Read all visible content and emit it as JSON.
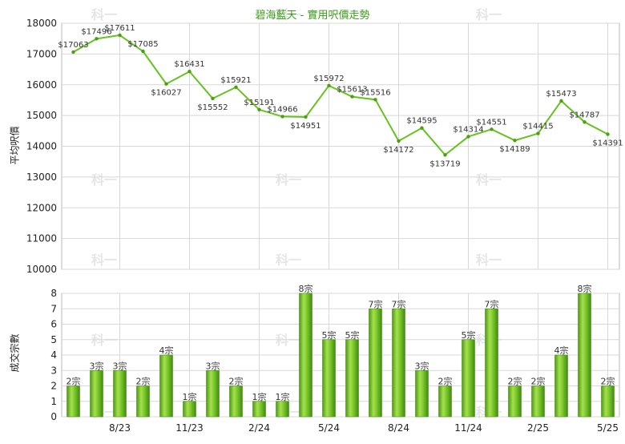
{
  "chart_data": [
    {
      "type": "line",
      "title": "碧海藍天 - 實用呎價走勢",
      "ylabel": "平均呎價",
      "ylim": [
        10000,
        18000
      ],
      "yticks": [
        10000,
        11000,
        12000,
        13000,
        14000,
        15000,
        16000,
        17000,
        18000
      ],
      "values": [
        17063,
        17496,
        17611,
        17085,
        16027,
        16431,
        15552,
        15921,
        15191,
        14966,
        14951,
        15972,
        15613,
        15516,
        14172,
        14595,
        13719,
        14314,
        14551,
        14189,
        14415,
        15473,
        14787,
        14391
      ],
      "data_labels": [
        "$17063",
        "$17496",
        "$17611",
        "$17085",
        "$16027",
        "$16431",
        "$15552",
        "$15921",
        "$15191",
        "$14966",
        "$14951",
        "$15972",
        "$15613",
        "$15516",
        "$14172",
        "$14595",
        "$13719",
        "$14314",
        "$14551",
        "$14189",
        "$14415",
        "$15473",
        "$14787",
        "$14391"
      ],
      "line_color": "#66c21e"
    },
    {
      "type": "bar",
      "ylabel": "成交宗數",
      "ylim": [
        0,
        8
      ],
      "yticks": [
        0,
        1,
        2,
        3,
        4,
        5,
        6,
        7,
        8
      ],
      "values": [
        2,
        3,
        3,
        2,
        4,
        1,
        3,
        2,
        1,
        1,
        8,
        5,
        5,
        7,
        7,
        3,
        2,
        5,
        7,
        2,
        2,
        4,
        8,
        2
      ],
      "data_labels": [
        "2宗",
        "3宗",
        "3宗",
        "2宗",
        "4宗",
        "1宗",
        "3宗",
        "2宗",
        "1宗",
        "1宗",
        "8宗",
        "5宗",
        "5宗",
        "7宗",
        "7宗",
        "3宗",
        "2宗",
        "5宗",
        "7宗",
        "2宗",
        "2宗",
        "4宗",
        "8宗",
        "2宗"
      ],
      "xtick_labels": [
        {
          "index": 2,
          "label": "8/23"
        },
        {
          "index": 5,
          "label": "11/23"
        },
        {
          "index": 8,
          "label": "2/24"
        },
        {
          "index": 11,
          "label": "5/24"
        },
        {
          "index": 14,
          "label": "8/24"
        },
        {
          "index": 17,
          "label": "11/24"
        },
        {
          "index": 20,
          "label": "2/25"
        },
        {
          "index": 23,
          "label": "5/25"
        }
      ],
      "bar_color": "#77c52a"
    }
  ],
  "watermark": "科一"
}
